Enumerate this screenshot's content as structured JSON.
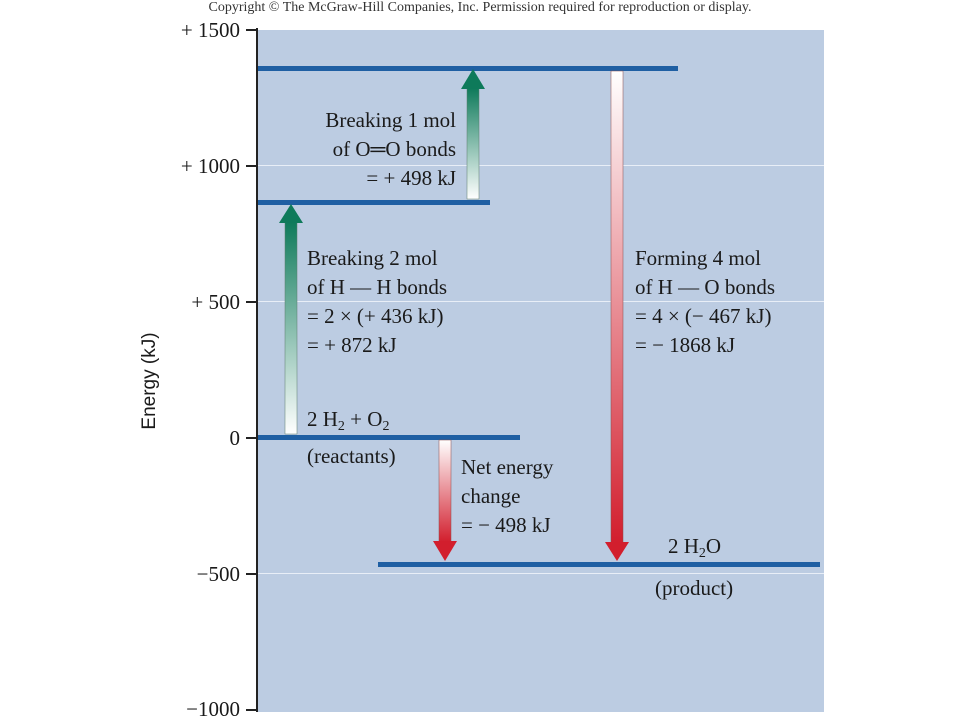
{
  "copyright": "Copyright © The McGraw-Hill Companies, Inc. Permission required for reproduction or display.",
  "chart_data": {
    "type": "energy-level-diagram",
    "ylabel": "Energy (kJ)",
    "ylim": [
      -1000,
      1500
    ],
    "yticks": [
      "+ 1500",
      "+ 1000",
      "+ 500",
      "0",
      "−500",
      "−1000"
    ],
    "grid": true,
    "levels": [
      {
        "name": "reactants",
        "energy": 0
      },
      {
        "name": "after H–H breaking",
        "energy": 872
      },
      {
        "name": "after O=O breaking",
        "energy": 1370
      },
      {
        "name": "product",
        "energy": -498
      }
    ],
    "arrows": [
      {
        "from": 0,
        "to": 872,
        "color": "#0e7a5a"
      },
      {
        "from": 872,
        "to": 1370,
        "color": "#0e7a5a"
      },
      {
        "from": 1370,
        "to": -498,
        "color": "#d21e2d"
      },
      {
        "from": 0,
        "to": -498,
        "color": "#d21e2d"
      }
    ]
  },
  "labels": {
    "breaking_oo": [
      "Breaking 1 mol",
      "of O═O bonds",
      "= + 498 kJ"
    ],
    "breaking_hh": [
      "Breaking 2 mol",
      "of H — H bonds",
      "= 2 × (+ 436 kJ)",
      "= + 872 kJ"
    ],
    "forming_ho": [
      "Forming 4 mol",
      "of H — O bonds",
      "= 4 × (− 467 kJ)",
      "= − 1868 kJ"
    ],
    "reactants_formula": {
      "a": "2 H",
      "sub1": "2",
      "b": " + O",
      "sub2": "2"
    },
    "reactants_caption": "(reactants)",
    "net_change": [
      "Net energy",
      "change",
      "= − 498 kJ"
    ],
    "product_formula": {
      "a": "2 H",
      "sub1": "2",
      "b": "O"
    },
    "product_caption": "(product)"
  }
}
